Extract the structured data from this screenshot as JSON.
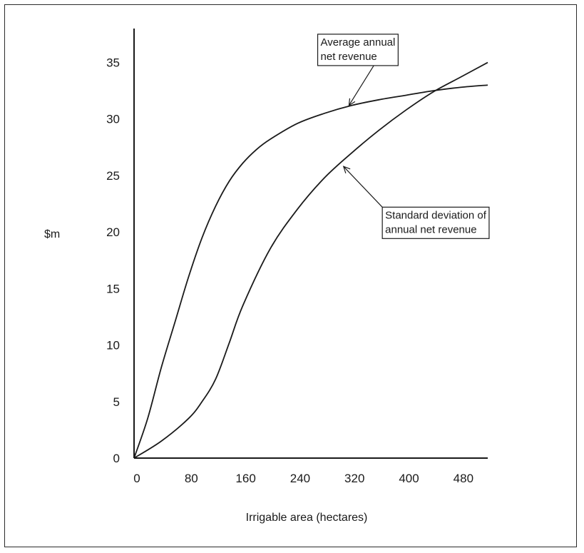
{
  "chart_data": {
    "type": "line",
    "title": "",
    "xlabel": "Irrigable area (hectares)",
    "ylabel": "$m",
    "xlim": [
      0,
      520
    ],
    "ylim": [
      0,
      38
    ],
    "x_ticks": [
      0,
      80,
      160,
      240,
      320,
      400,
      480
    ],
    "y_ticks": [
      0,
      5,
      10,
      15,
      20,
      25,
      30,
      35
    ],
    "grid": false,
    "legend": "none",
    "series": [
      {
        "name": "Average annual net revenue",
        "color": "#1a1a1a",
        "points": [
          [
            0,
            0
          ],
          [
            20,
            3.5
          ],
          [
            40,
            8
          ],
          [
            60,
            12
          ],
          [
            80,
            16
          ],
          [
            100,
            19.5
          ],
          [
            120,
            22.3
          ],
          [
            140,
            24.5
          ],
          [
            160,
            26.1
          ],
          [
            180,
            27.3
          ],
          [
            200,
            28.2
          ],
          [
            240,
            29.6
          ],
          [
            280,
            30.5
          ],
          [
            320,
            31.2
          ],
          [
            360,
            31.7
          ],
          [
            400,
            32.1
          ],
          [
            440,
            32.5
          ],
          [
            480,
            32.8
          ],
          [
            520,
            33.0
          ]
        ]
      },
      {
        "name": "Standard deviation of annual net revenue",
        "color": "#1a1a1a",
        "points": [
          [
            0,
            0
          ],
          [
            40,
            1.5
          ],
          [
            80,
            3.5
          ],
          [
            100,
            5
          ],
          [
            120,
            7
          ],
          [
            140,
            10.2
          ],
          [
            160,
            13.5
          ],
          [
            200,
            18.5
          ],
          [
            240,
            22
          ],
          [
            280,
            24.8
          ],
          [
            320,
            27
          ],
          [
            360,
            29
          ],
          [
            400,
            30.8
          ],
          [
            440,
            32.4
          ],
          [
            480,
            33.7
          ],
          [
            520,
            35.0
          ]
        ]
      }
    ],
    "annotations": [
      {
        "lines": [
          "Average annual",
          "net revenue"
        ],
        "x": 270,
        "y": 37.5,
        "arrow_to": [
          316,
          31.2
        ],
        "anchor": "Average annual net revenue"
      },
      {
        "lines": [
          "Standard deviation of",
          "annual net revenue"
        ],
        "x": 365,
        "y": 22.2,
        "arrow_to": [
          308,
          25.8
        ],
        "anchor": "Standard deviation of annual net revenue"
      }
    ]
  }
}
